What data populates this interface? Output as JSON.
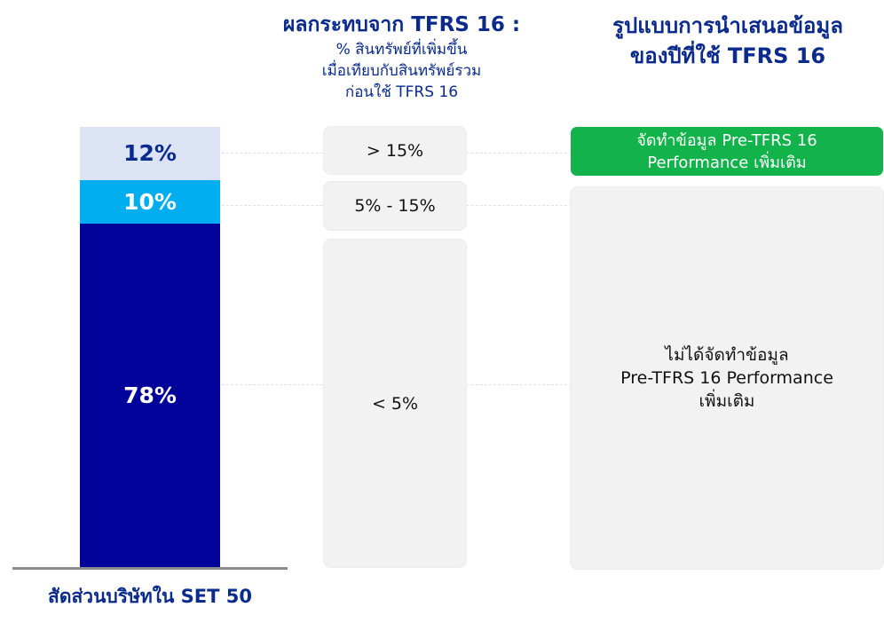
{
  "colors": {
    "segment_small": "#dbe3f5",
    "segment_mid": "#00aeef",
    "segment_large": "#00029a",
    "title_blue": "#0a2a8c",
    "green_box": "#12b34a",
    "gray_box": "#f2f2f2"
  },
  "impact_column": {
    "title": "ผลกระทบจาก TFRS 16 :",
    "subtitle_line1": "% สินทรัพย์ที่เพิ่มขึ้น",
    "subtitle_line2": "เมื่อเทียบกับสินทรัพย์รวม",
    "subtitle_line3": "ก่อนใช้ TFRS 16",
    "ranges": [
      "> 15%",
      "5% - 15%",
      "< 5%"
    ]
  },
  "presentation_column": {
    "title_line1": "รูปแบบการนำเสนอข้อมูล",
    "title_line2": "ของปีที่ใช้ TFRS 16",
    "green_line1": "จัดทำข้อมูล Pre-TFRS 16",
    "green_line2": "Performance เพิ่มเติม",
    "gray_line1": "ไม่ได้จัดทำข้อมูล",
    "gray_line2": "Pre-TFRS 16 Performance",
    "gray_line3": "เพิ่มเติม"
  },
  "chart_data": {
    "type": "bar",
    "stacked": true,
    "categories": [
      "สัดส่วนบริษัทใน SET 50"
    ],
    "xlabel": "สัดส่วนบริษัทใน SET 50",
    "series": [
      {
        "values": [
          78
        ],
        "label": "78%",
        "color": "#00029a"
      },
      {
        "values": [
          10
        ],
        "label": "10%",
        "color": "#00aeef"
      },
      {
        "values": [
          12
        ],
        "label": "12%",
        "color": "#dbe3f5"
      }
    ],
    "ylim": [
      0,
      100
    ],
    "grid": false
  }
}
